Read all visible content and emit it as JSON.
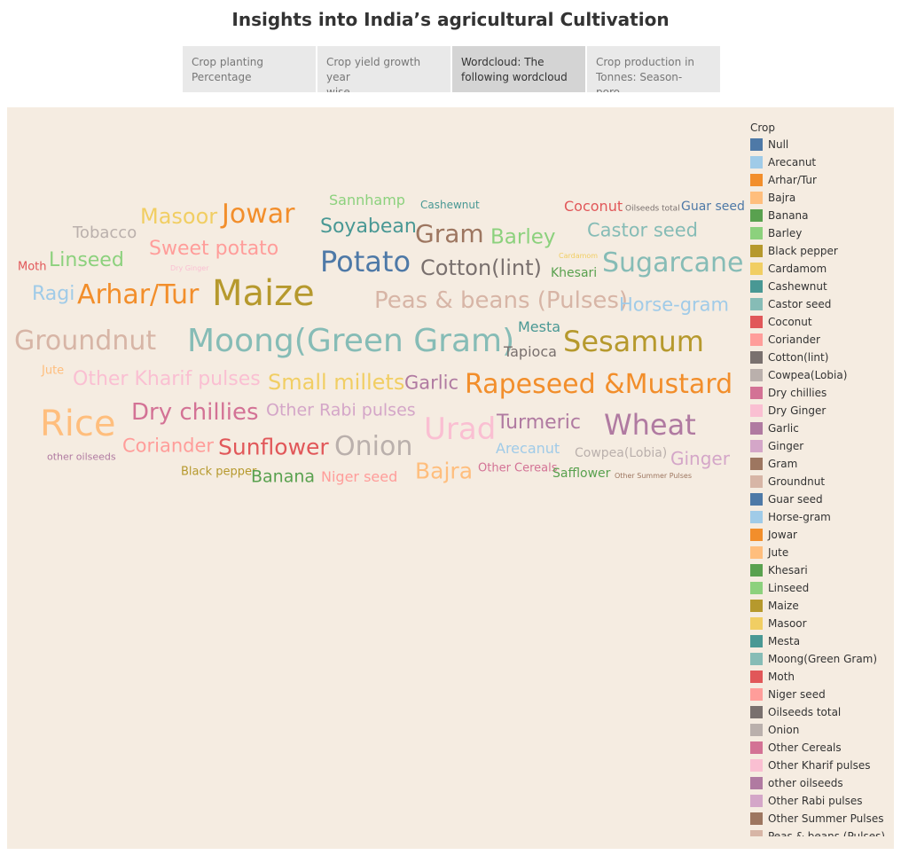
{
  "title": "Insights into India’s agricultural Cultivation",
  "tabs": [
    {
      "line1": "Crop planting",
      "line2": "Percentage",
      "active": false
    },
    {
      "line1": "Crop yield growth year",
      "line2": "wise",
      "active": false
    },
    {
      "line1": "Wordcloud: The",
      "line2": "following wordcloud ..",
      "active": true
    },
    {
      "line1": "Crop production in",
      "line2": "Tonnes: Season-poro..",
      "active": false
    }
  ],
  "legend": {
    "title": "Crop",
    "items": [
      {
        "label": "Null",
        "color": "#4e79a7"
      },
      {
        "label": "Arecanut",
        "color": "#a0cbe8"
      },
      {
        "label": "Arhar/Tur",
        "color": "#f28e2b"
      },
      {
        "label": "Bajra",
        "color": "#ffbe7d"
      },
      {
        "label": "Banana",
        "color": "#59a14f"
      },
      {
        "label": "Barley",
        "color": "#8cd17d"
      },
      {
        "label": "Black pepper",
        "color": "#b6992d"
      },
      {
        "label": "Cardamom",
        "color": "#f1ce63"
      },
      {
        "label": "Cashewnut",
        "color": "#499894"
      },
      {
        "label": "Castor seed",
        "color": "#86bcb6"
      },
      {
        "label": "Coconut",
        "color": "#e15759"
      },
      {
        "label": "Coriander",
        "color": "#ff9d9a"
      },
      {
        "label": "Cotton(lint)",
        "color": "#79706e"
      },
      {
        "label": "Cowpea(Lobia)",
        "color": "#bab0ac"
      },
      {
        "label": "Dry chillies",
        "color": "#d37295"
      },
      {
        "label": "Dry Ginger",
        "color": "#fabfd2"
      },
      {
        "label": "Garlic",
        "color": "#b07aa1"
      },
      {
        "label": "Ginger",
        "color": "#d4a6c8"
      },
      {
        "label": "Gram",
        "color": "#9d7660"
      },
      {
        "label": "Groundnut",
        "color": "#d7b5a6"
      },
      {
        "label": "Guar seed",
        "color": "#4e79a7"
      },
      {
        "label": "Horse-gram",
        "color": "#a0cbe8"
      },
      {
        "label": "Jowar",
        "color": "#f28e2b"
      },
      {
        "label": "Jute",
        "color": "#ffbe7d"
      },
      {
        "label": "Khesari",
        "color": "#59a14f"
      },
      {
        "label": "Linseed",
        "color": "#8cd17d"
      },
      {
        "label": "Maize",
        "color": "#b6992d"
      },
      {
        "label": "Masoor",
        "color": "#f1ce63"
      },
      {
        "label": "Mesta",
        "color": "#499894"
      },
      {
        "label": "Moong(Green Gram)",
        "color": "#86bcb6"
      },
      {
        "label": "Moth",
        "color": "#e15759"
      },
      {
        "label": "Niger seed",
        "color": "#ff9d9a"
      },
      {
        "label": "Oilseeds total",
        "color": "#79706e"
      },
      {
        "label": "Onion",
        "color": "#bab0ac"
      },
      {
        "label": "Other Cereals",
        "color": "#d37295"
      },
      {
        "label": "Other Kharif pulses",
        "color": "#fabfd2"
      },
      {
        "label": "other oilseeds",
        "color": "#b07aa1"
      },
      {
        "label": "Other Rabi pulses",
        "color": "#d4a6c8"
      },
      {
        "label": "Other Summer Pulses",
        "color": "#9d7660"
      },
      {
        "label": "Peas & beans (Pulses)",
        "color": "#d7b5a6"
      }
    ]
  },
  "words": [
    {
      "text": "Sannhamp",
      "color": "#8cd17d"
    },
    {
      "text": "Cashewnut",
      "color": "#499894"
    },
    {
      "text": "Coconut",
      "color": "#e15759"
    },
    {
      "text": "Oilseeds total",
      "color": "#79706e"
    },
    {
      "text": "Guar seed",
      "color": "#4e79a7"
    },
    {
      "text": "Masoor",
      "color": "#f1ce63"
    },
    {
      "text": "Jowar",
      "color": "#f28e2b"
    },
    {
      "text": "Soyabean",
      "color": "#499894"
    },
    {
      "text": "Tobacco",
      "color": "#bab0ac"
    },
    {
      "text": "Gram",
      "color": "#9d7660"
    },
    {
      "text": "Barley",
      "color": "#8cd17d"
    },
    {
      "text": "Castor seed",
      "color": "#86bcb6"
    },
    {
      "text": "Sweet potato",
      "color": "#ff9d9a"
    },
    {
      "text": "Cardamom",
      "color": "#f1ce63"
    },
    {
      "text": "Moth",
      "color": "#e15759"
    },
    {
      "text": "Linseed",
      "color": "#8cd17d"
    },
    {
      "text": "Dry Ginger",
      "color": "#fabfd2"
    },
    {
      "text": "Potato",
      "color": "#4e79a7"
    },
    {
      "text": "Cotton(lint)",
      "color": "#79706e"
    },
    {
      "text": "Khesari",
      "color": "#59a14f"
    },
    {
      "text": "Sugarcane",
      "color": "#86bcb6"
    },
    {
      "text": "Ragi",
      "color": "#a0cbe8"
    },
    {
      "text": "Arhar/Tur",
      "color": "#f28e2b"
    },
    {
      "text": "Maize",
      "color": "#b6992d"
    },
    {
      "text": "Peas & beans (Pulses)",
      "color": "#d7b5a6"
    },
    {
      "text": "Horse-gram",
      "color": "#a0cbe8"
    },
    {
      "text": "Mesta",
      "color": "#499894"
    },
    {
      "text": "Groundnut",
      "color": "#d7b5a6"
    },
    {
      "text": "Moong(Green Gram)",
      "color": "#86bcb6"
    },
    {
      "text": "Sesamum",
      "color": "#b6992d"
    },
    {
      "text": "Tapioca",
      "color": "#79706e"
    },
    {
      "text": "Jute",
      "color": "#ffbe7d"
    },
    {
      "text": "Other Kharif pulses",
      "color": "#fabfd2"
    },
    {
      "text": "Small millets",
      "color": "#f1ce63"
    },
    {
      "text": "Garlic",
      "color": "#b07aa1"
    },
    {
      "text": "Rapeseed &Mustard",
      "color": "#f28e2b"
    },
    {
      "text": "Rice",
      "color": "#ffbe7d"
    },
    {
      "text": "Dry chillies",
      "color": "#d37295"
    },
    {
      "text": "Other Rabi pulses",
      "color": "#d4a6c8"
    },
    {
      "text": "Urad",
      "color": "#fabfd2"
    },
    {
      "text": "Turmeric",
      "color": "#b07aa1"
    },
    {
      "text": "Wheat",
      "color": "#b07aa1"
    },
    {
      "text": "Coriander",
      "color": "#ff9d9a"
    },
    {
      "text": "Sunflower",
      "color": "#e15759"
    },
    {
      "text": "Onion",
      "color": "#bab0ac"
    },
    {
      "text": "Arecanut",
      "color": "#a0cbe8"
    },
    {
      "text": "Cowpea(Lobia)",
      "color": "#bab0ac"
    },
    {
      "text": "Ginger",
      "color": "#d4a6c8"
    },
    {
      "text": "other oilseeds",
      "color": "#b07aa1"
    },
    {
      "text": "Black pepper",
      "color": "#b6992d"
    },
    {
      "text": "Banana",
      "color": "#59a14f"
    },
    {
      "text": "Niger seed",
      "color": "#ff9d9a"
    },
    {
      "text": "Bajra",
      "color": "#ffbe7d"
    },
    {
      "text": "Other Cereals",
      "color": "#d37295"
    },
    {
      "text": "Safflower",
      "color": "#59a14f"
    },
    {
      "text": "Other Summer Pulses",
      "color": "#9d7660"
    }
  ]
}
